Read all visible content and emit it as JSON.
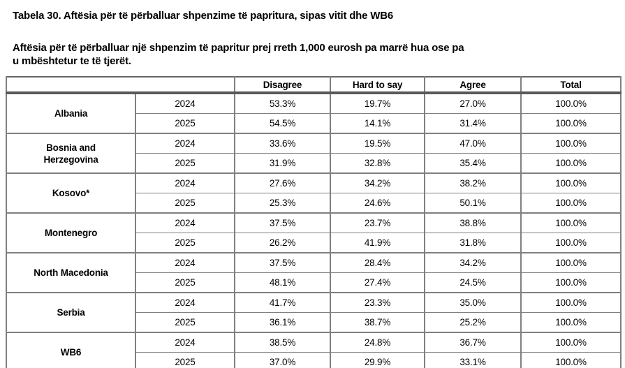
{
  "page": {
    "title": "Tabela 30. Aftësia për të përballuar shpenzime të papritura, sipas vitit dhe WB6",
    "subtitle_line1": "Aftësia për të përballuar një shpenzim të papritur prej rreth 1,000 eurosh pa marrë hua ose pa",
    "subtitle_line2": "u mbështetur te të tjerët."
  },
  "table": {
    "headers": [
      "Disagree",
      "Hard to say",
      "Agree",
      "Total"
    ],
    "groups": [
      {
        "country": "Albania",
        "rows": [
          {
            "year": "2024",
            "values": [
              "53.3%",
              "19.7%",
              "27.0%",
              "100.0%"
            ]
          },
          {
            "year": "2025",
            "values": [
              "54.5%",
              "14.1%",
              "31.4%",
              "100.0%"
            ]
          }
        ]
      },
      {
        "country": "Bosnia and Herzegovina",
        "rows": [
          {
            "year": "2024",
            "values": [
              "33.6%",
              "19.5%",
              "47.0%",
              "100.0%"
            ]
          },
          {
            "year": "2025",
            "values": [
              "31.9%",
              "32.8%",
              "35.4%",
              "100.0%"
            ]
          }
        ]
      },
      {
        "country": "Kosovo*",
        "rows": [
          {
            "year": "2024",
            "values": [
              "27.6%",
              "34.2%",
              "38.2%",
              "100.0%"
            ]
          },
          {
            "year": "2025",
            "values": [
              "25.3%",
              "24.6%",
              "50.1%",
              "100.0%"
            ]
          }
        ]
      },
      {
        "country": "Montenegro",
        "rows": [
          {
            "year": "2024",
            "values": [
              "37.5%",
              "23.7%",
              "38.8%",
              "100.0%"
            ]
          },
          {
            "year": "2025",
            "values": [
              "26.2%",
              "41.9%",
              "31.8%",
              "100.0%"
            ]
          }
        ]
      },
      {
        "country": "North Macedonia",
        "rows": [
          {
            "year": "2024",
            "values": [
              "37.5%",
              "28.4%",
              "34.2%",
              "100.0%"
            ]
          },
          {
            "year": "2025",
            "values": [
              "48.1%",
              "27.4%",
              "24.5%",
              "100.0%"
            ]
          }
        ]
      },
      {
        "country": "Serbia",
        "rows": [
          {
            "year": "2024",
            "values": [
              "41.7%",
              "23.3%",
              "35.0%",
              "100.0%"
            ]
          },
          {
            "year": "2025",
            "values": [
              "36.1%",
              "38.7%",
              "25.2%",
              "100.0%"
            ]
          }
        ]
      },
      {
        "country": "WB6",
        "rows": [
          {
            "year": "2024",
            "values": [
              "38.5%",
              "24.8%",
              "36.7%",
              "100.0%"
            ]
          },
          {
            "year": "2025",
            "values": [
              "37.0%",
              "29.9%",
              "33.1%",
              "100.0%"
            ]
          }
        ]
      }
    ]
  }
}
